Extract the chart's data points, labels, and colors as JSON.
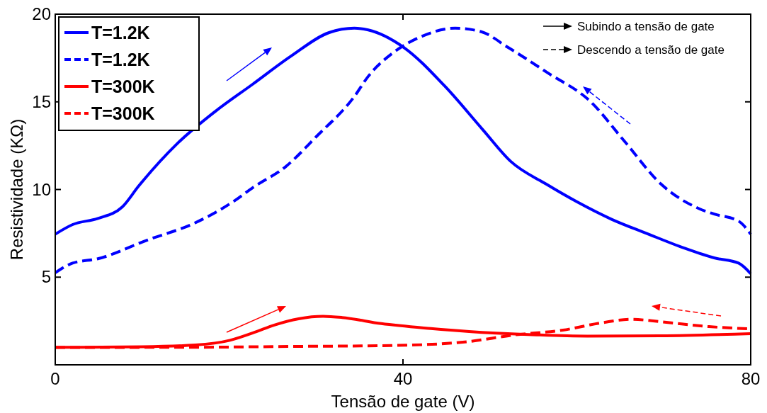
{
  "chart_data": {
    "type": "line",
    "xlabel": "Tensão de gate (V)",
    "ylabel": "Resistividade (KΩ)",
    "xlim": [
      0,
      80
    ],
    "xticks": [
      0,
      40,
      80
    ],
    "ylim": [
      0,
      20
    ],
    "yticks": [
      {
        "value": 0,
        "label": null
      },
      5,
      10,
      15,
      20
    ],
    "grid": false,
    "legend": "top left",
    "annotations": [
      "Subindo a tensão de gate",
      "Descendo a tensão de gate"
    ],
    "series": [
      {
        "name": "T=1.2K",
        "color": "#0000ff",
        "line_style": "solid",
        "x": [
          0,
          2,
          4.9,
          7.7,
          9.6,
          14,
          18.4,
          22.7,
          27.1,
          31.5,
          34.4,
          36,
          40.1,
          44.8,
          49.2,
          52.4,
          56.5,
          60,
          64,
          68,
          72.4,
          75.8,
          78.6,
          80
        ],
        "values": [
          7.45,
          8.0,
          8.35,
          9.0,
          10.2,
          12.6,
          14.45,
          16.0,
          17.6,
          18.95,
          19.2,
          19.1,
          18.1,
          15.9,
          13.4,
          11.6,
          10.3,
          9.3,
          8.3,
          7.5,
          6.65,
          6.1,
          5.8,
          5.2
        ]
      },
      {
        "name": "T=1.2K",
        "color": "#0000ff",
        "line_style": "dashed",
        "x": [
          0,
          2,
          4.9,
          10.5,
          16.1,
          20.6,
          22.7,
          26.5,
          30,
          34.4,
          36,
          39,
          42,
          46,
          49,
          52.1,
          56.5,
          61.6,
          65.4,
          69.7,
          74.1,
          75.8,
          78.6,
          80
        ],
        "values": [
          5.25,
          5.8,
          6.05,
          7.1,
          8.1,
          9.35,
          10.1,
          11.3,
          13.0,
          15.3,
          16.45,
          17.85,
          18.7,
          19.2,
          19.0,
          18.1,
          16.7,
          15.0,
          12.8,
          10.3,
          8.9,
          8.6,
          8.2,
          7.45
        ]
      },
      {
        "name": "T=300K",
        "color": "#ff0000",
        "line_style": "solid",
        "x": [
          0,
          10,
          16.1,
          20.1,
          22.9,
          25.2,
          28,
          30.8,
          33,
          37.5,
          43.2,
          47.6,
          54.4,
          61.2,
          69.6,
          80
        ],
        "values": [
          1.0,
          1.03,
          1.13,
          1.4,
          1.85,
          2.27,
          2.63,
          2.77,
          2.7,
          2.35,
          2.07,
          1.9,
          1.73,
          1.64,
          1.66,
          1.78
        ]
      },
      {
        "name": "T=300K",
        "color": "#ff0000",
        "line_style": "dashed",
        "x": [
          0,
          15,
          27.4,
          38.6,
          47.1,
          52.7,
          58.4,
          62.9,
          66.2,
          69.6,
          75.2,
          80
        ],
        "values": [
          0.99,
          1.0,
          1.05,
          1.1,
          1.3,
          1.7,
          1.98,
          2.4,
          2.6,
          2.46,
          2.18,
          2.05
        ]
      }
    ]
  }
}
